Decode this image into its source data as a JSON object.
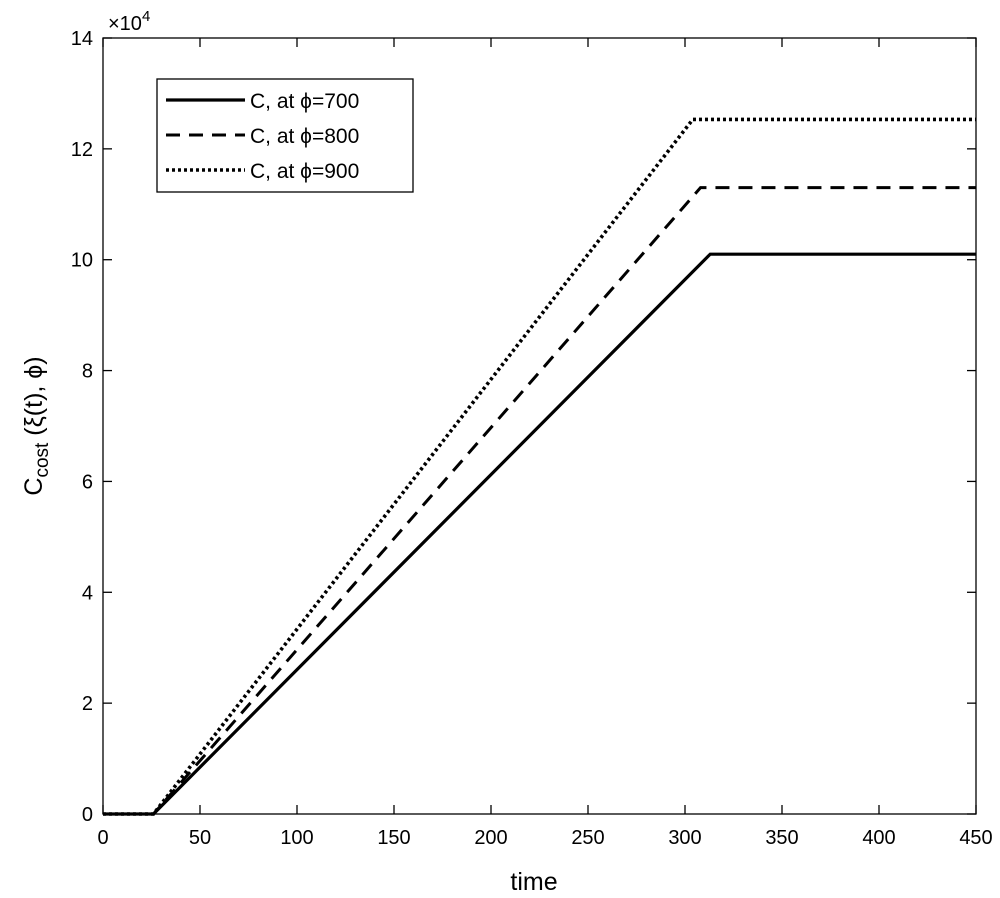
{
  "chart_data": {
    "type": "line",
    "xlabel": "time",
    "ylabel_main": "C",
    "ylabel_sub": "cost",
    "ylabel_rest": " (ξ(t), ϕ)",
    "exponent_label": "×10",
    "exponent_power": "4",
    "xlim": [
      0,
      450
    ],
    "ylim": [
      0,
      140000
    ],
    "x_ticks": [
      0,
      50,
      100,
      150,
      200,
      250,
      300,
      350,
      400,
      450
    ],
    "y_ticks": [
      0,
      20000,
      40000,
      60000,
      80000,
      100000,
      120000,
      140000
    ],
    "x_tick_labels": [
      "0",
      "50",
      "100",
      "150",
      "200",
      "250",
      "300",
      "350",
      "400",
      "450"
    ],
    "y_tick_labels": [
      "0",
      "2",
      "4",
      "6",
      "8",
      "10",
      "12",
      "14"
    ],
    "legend_position": "top-left",
    "grid": false,
    "series": [
      {
        "name": "C, at  ϕ=700",
        "style": "solid",
        "x": [
          0,
          26,
          313,
          450
        ],
        "y": [
          0,
          0,
          101000,
          101000
        ]
      },
      {
        "name": "C, at  ϕ=800",
        "style": "dashed",
        "x": [
          0,
          26,
          308,
          450
        ],
        "y": [
          0,
          0,
          113000,
          113000
        ]
      },
      {
        "name": "C, at  ϕ=900",
        "style": "dotted",
        "x": [
          0,
          26,
          304,
          450
        ],
        "y": [
          0,
          0,
          125300,
          125300
        ]
      }
    ]
  }
}
